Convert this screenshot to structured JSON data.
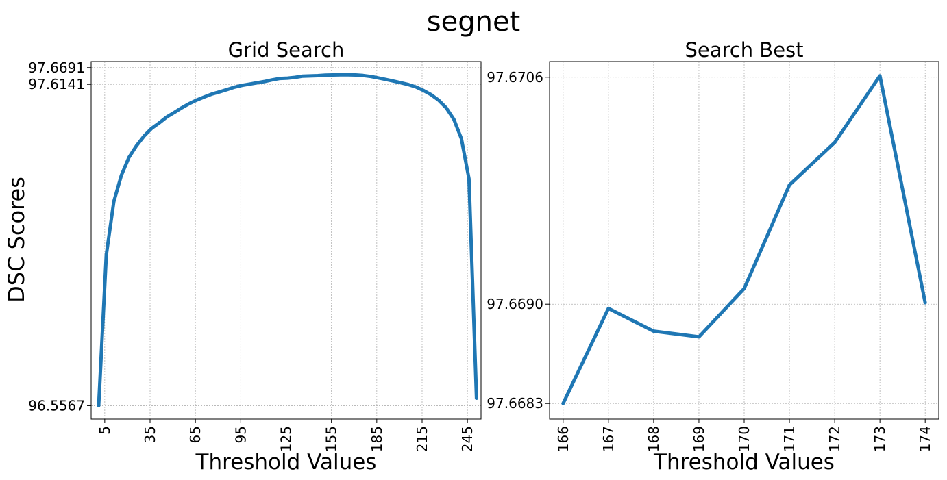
{
  "figure": {
    "title": "segnet",
    "shared_ylabel": "DSC Scores"
  },
  "colors": {
    "line": "#1f77b4",
    "grid": "#b0b0b0",
    "axes": "#000000",
    "background": "#ffffff"
  },
  "chart_data": [
    {
      "type": "line",
      "title": "Grid Search",
      "xlabel": "Threshold Values",
      "ylabel": "DSC Scores",
      "xlim": [
        -4,
        254
      ],
      "ylim": [
        96.5126,
        97.6889
      ],
      "xticks": [
        5,
        35,
        65,
        95,
        125,
        155,
        185,
        215,
        245
      ],
      "xtick_labels": [
        "5",
        "35",
        "65",
        "95",
        "125",
        "155",
        "185",
        "215",
        "245"
      ],
      "yticks": [
        96.5567,
        97.6141,
        97.6691
      ],
      "ytick_labels": [
        "96.5567",
        "97.6141",
        "97.6691"
      ],
      "grid": true,
      "series": [
        {
          "x": [
            1,
            6,
            11,
            16,
            21,
            26,
            31,
            36,
            41,
            46,
            51,
            56,
            61,
            66,
            71,
            76,
            81,
            86,
            91,
            96,
            101,
            106,
            111,
            116,
            121,
            126,
            131,
            136,
            141,
            146,
            151,
            156,
            161,
            166,
            171,
            176,
            181,
            186,
            191,
            196,
            201,
            206,
            211,
            216,
            221,
            226,
            231,
            236,
            241,
            246,
            251
          ],
          "y": [
            96.5567,
            97.0528,
            97.2284,
            97.3146,
            97.3734,
            97.4121,
            97.4437,
            97.4691,
            97.4871,
            97.5066,
            97.5215,
            97.5371,
            97.551,
            97.5628,
            97.5726,
            97.5822,
            97.5894,
            97.5969,
            97.6049,
            97.6106,
            97.615,
            97.6193,
            97.6236,
            97.629,
            97.6335,
            97.6346,
            97.6371,
            97.6412,
            97.6418,
            97.6427,
            97.6444,
            97.645,
            97.6454,
            97.6456,
            97.645,
            97.6432,
            97.64,
            97.6353,
            97.6301,
            97.625,
            97.6193,
            97.6131,
            97.6052,
            97.5935,
            97.58,
            97.5618,
            97.5366,
            97.4991,
            97.4357,
            97.3034,
            96.5814
          ]
        }
      ]
    },
    {
      "type": "line",
      "title": "Search Best",
      "xlabel": "Threshold Values",
      "ylabel": "",
      "xlim": [
        165.7,
        174.3
      ],
      "ylim": [
        97.66819,
        97.67071
      ],
      "xticks": [
        166,
        167,
        168,
        169,
        170,
        171,
        172,
        173,
        174
      ],
      "xtick_labels": [
        "166",
        "167",
        "168",
        "169",
        "170",
        "171",
        "172",
        "173",
        "174"
      ],
      "yticks": [
        97.6683,
        97.669,
        97.6706
      ],
      "ytick_labels": [
        "97.6683",
        "97.6690",
        "97.6706"
      ],
      "grid": true,
      "series": [
        {
          "x": [
            166,
            167,
            168,
            169,
            170,
            171,
            172,
            173,
            174
          ],
          "y": [
            97.6683,
            97.66897,
            97.66881,
            97.66877,
            97.66911,
            97.66984,
            97.67014,
            97.67061,
            97.66901
          ]
        }
      ]
    }
  ]
}
